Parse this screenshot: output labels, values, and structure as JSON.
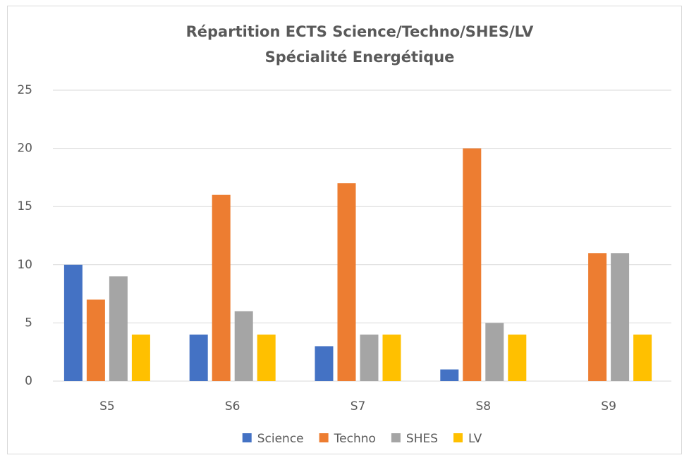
{
  "chart_data": {
    "type": "bar",
    "title": [
      "Répartition ECTS Science/Techno/SHES/LV",
      "Spécialité Energétique"
    ],
    "categories": [
      "S5",
      "S6",
      "S7",
      "S8",
      "S9"
    ],
    "series": [
      {
        "name": "Science",
        "color": "#4472c4",
        "values": [
          10,
          4,
          3,
          1,
          0
        ]
      },
      {
        "name": "Techno",
        "color": "#ed7d31",
        "values": [
          7,
          16,
          17,
          20,
          11
        ]
      },
      {
        "name": "SHES",
        "color": "#a5a5a5",
        "values": [
          9,
          6,
          4,
          5,
          11
        ]
      },
      {
        "name": "LV",
        "color": "#ffc000",
        "values": [
          4,
          4,
          4,
          4,
          4
        ]
      }
    ],
    "ylim": [
      0,
      25
    ],
    "yticks": [
      0,
      5,
      10,
      15,
      20,
      25
    ],
    "grid": true,
    "legend": "bottom"
  }
}
